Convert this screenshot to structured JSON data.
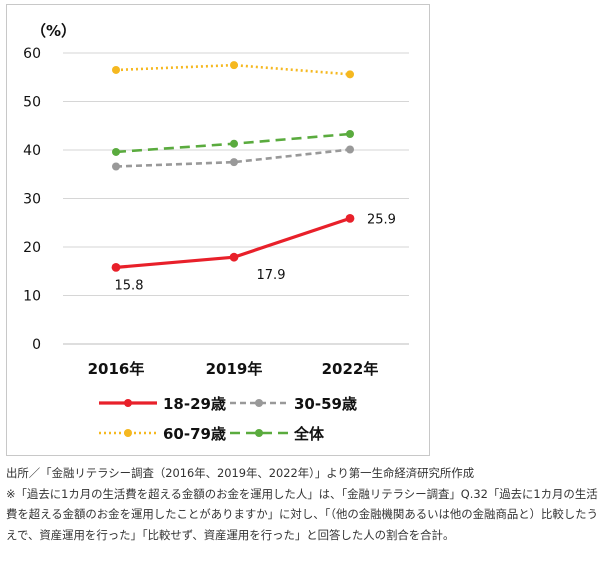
{
  "chart_data": {
    "type": "line",
    "categories": [
      "2016年",
      "2019年",
      "2022年"
    ],
    "ylabel": "（%）",
    "ylim": [
      0,
      60
    ],
    "yticks": [
      0,
      10,
      20,
      30,
      40,
      50,
      60
    ],
    "grid": true,
    "legend": "bottom",
    "series": [
      {
        "name": "18-29歳",
        "values": [
          15.8,
          17.9,
          25.9
        ],
        "color": "#e8202a",
        "style": "solid",
        "labels": [
          "15.8",
          "17.9",
          "25.9"
        ]
      },
      {
        "name": "30-59歳",
        "values": [
          36.6,
          37.5,
          40.1
        ],
        "color": "#999999",
        "style": "dashed"
      },
      {
        "name": "60-79歳",
        "values": [
          56.5,
          57.5,
          55.6
        ],
        "color": "#f5b820",
        "style": "dotted"
      },
      {
        "name": "全体",
        "values": [
          39.6,
          41.3,
          43.3
        ],
        "color": "#5aab3e",
        "style": "longdash"
      }
    ]
  },
  "notes": {
    "source": "出所／「金融リテラシー調査（2016年、2019年、2022年）」より第一生命経済研究所作成",
    "remark": "※「過去に1カ月の生活費を超える金額のお金を運用した人」は、「金融リテラシー調査」Q.32「過去に1カ月の生活費を超える金額のお金を運用したことがありますか」に対し、「（他の金融機関あるいは他の金融商品と）比較したうえで、資産運用を行った」「比較せず、資産運用を行った」と回答した人の割合を合計。"
  }
}
